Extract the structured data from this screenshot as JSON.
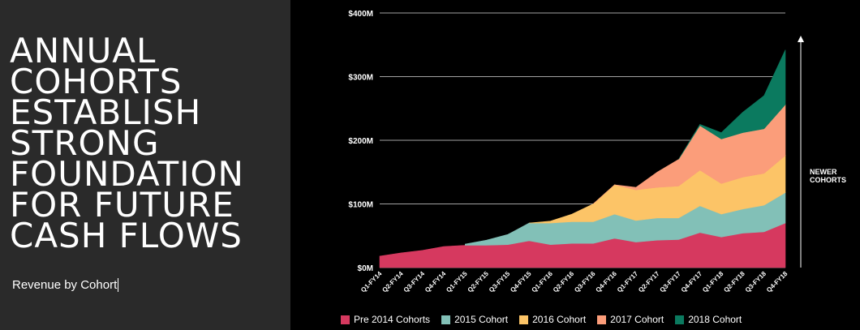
{
  "headline": [
    "ANNUAL",
    "COHORTS",
    "ESTABLISH",
    "STRONG",
    "FOUNDATION",
    "FOR FUTURE",
    "CASH FLOWS"
  ],
  "subtitle": "Revenue by Cohort",
  "chart_data": {
    "type": "area",
    "stacked": true,
    "title": "Revenue by Cohort",
    "categories": [
      "Q1-FY14",
      "Q2-FY14",
      "Q3-FY14",
      "Q4-FY14",
      "Q1-FY15",
      "Q2-FY15",
      "Q3-FY15",
      "Q4-FY15",
      "Q1-FY16",
      "Q2-FY16",
      "Q3-FY16",
      "Q4-FY16",
      "Q1-FY17",
      "Q2-FY17",
      "Q3-FY17",
      "Q4-FY17",
      "Q1-FY18",
      "Q2-FY18",
      "Q3-FY18",
      "Q4-FY18"
    ],
    "y_ticks": [
      {
        "value": 0,
        "label": "$0M"
      },
      {
        "value": 100,
        "label": "$100M"
      },
      {
        "value": 200,
        "label": "$200M"
      },
      {
        "value": 300,
        "label": "$300M"
      },
      {
        "value": 400,
        "label": "$400M"
      }
    ],
    "ylim": [
      0,
      400
    ],
    "series": [
      {
        "name": "Pre 2014 Cohorts",
        "color": "#d6395f",
        "start": 0,
        "values": [
          18,
          23,
          27,
          33,
          35,
          35,
          36,
          42,
          36,
          38,
          38,
          46,
          40,
          43,
          44,
          55,
          48,
          54,
          56,
          70
        ]
      },
      {
        "name": "2015 Cohort",
        "color": "#82c0b7",
        "start": 4,
        "values": [
          null,
          null,
          null,
          null,
          2,
          8,
          16,
          28,
          34,
          34,
          34,
          38,
          34,
          35,
          34,
          42,
          36,
          38,
          42,
          48
        ]
      },
      {
        "name": "2016 Cohort",
        "color": "#fcc467",
        "start": 7,
        "values": [
          null,
          null,
          null,
          null,
          null,
          null,
          null,
          0,
          3,
          12,
          28,
          46,
          48,
          48,
          50,
          56,
          48,
          50,
          50,
          58
        ]
      },
      {
        "name": "2017 Cohort",
        "color": "#fb9d7a",
        "start": 10,
        "values": [
          null,
          null,
          null,
          null,
          null,
          null,
          null,
          null,
          null,
          null,
          0,
          0,
          4,
          24,
          42,
          70,
          70,
          70,
          70,
          80
        ]
      },
      {
        "name": "2018 Cohort",
        "color": "#0b7a5f",
        "start": 14,
        "values": [
          null,
          null,
          null,
          null,
          null,
          null,
          null,
          null,
          null,
          null,
          null,
          null,
          null,
          null,
          0,
          2,
          10,
          32,
          52,
          86
        ]
      }
    ],
    "annotation": "NEWER\nCOHORTS"
  },
  "annotation_lines": [
    "NEWER",
    "COHORTS"
  ]
}
